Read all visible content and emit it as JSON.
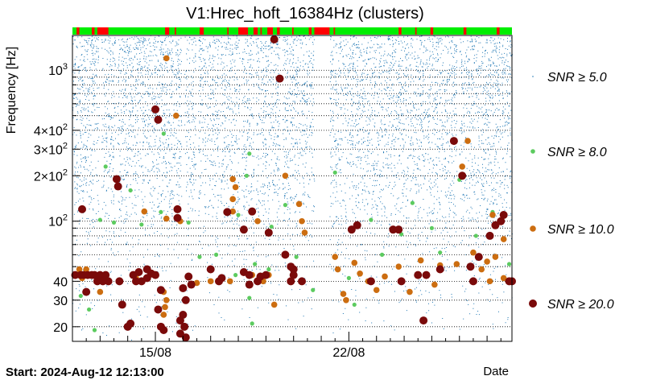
{
  "chart_data": {
    "type": "scatter",
    "title": "V1:Hrec_hoft_16384Hz (clusters)",
    "ylabel": "Frequency [Hz]",
    "xlabel": "Date",
    "start_label": "Start: 2024-Aug-12 12:13:00",
    "yscale": "log",
    "ylim": [
      16,
      1700
    ],
    "xlim": [
      0,
      15.9
    ],
    "x_ticks": [
      {
        "x": 3.0,
        "label": "15/08"
      },
      {
        "x": 10.0,
        "label": "22/08"
      }
    ],
    "y_ticks": [
      {
        "y": 20,
        "label": "20"
      },
      {
        "y": 30,
        "label": "30"
      },
      {
        "y": 40,
        "label": "40"
      },
      {
        "y": 100,
        "label": "10",
        "exp": "2"
      },
      {
        "y": 200,
        "label": "2×10",
        "exp": "2"
      },
      {
        "y": 300,
        "label": "3×10",
        "exp": "2"
      },
      {
        "y": 400,
        "label": "4×10",
        "exp": "2"
      },
      {
        "y": 1000,
        "label": "10",
        "exp": "3"
      }
    ],
    "legend": [
      {
        "label": "SNR ≥ 5.0",
        "color": "#1f77b4"
      },
      {
        "label": "SNR ≥ 8.0",
        "color": "#5ccb5f"
      },
      {
        "label": "SNR ≥ 10.0",
        "color": "#cc6d10"
      },
      {
        "label": "SNR ≥ 20.0",
        "color": "#7a0a0a"
      }
    ],
    "series": [
      {
        "name": "SNR ≥ 8.0",
        "color": "#5ccb5f",
        "points": [
          [
            0.3,
            32
          ],
          [
            0.6,
            26
          ],
          [
            0.8,
            19
          ],
          [
            1.0,
            102
          ],
          [
            1.2,
            230
          ],
          [
            1.5,
            98
          ],
          [
            2.1,
            160
          ],
          [
            2.5,
            95
          ],
          [
            3.3,
            380
          ],
          [
            3.2,
            115
          ],
          [
            4.2,
            98
          ],
          [
            4.6,
            58
          ],
          [
            5.2,
            60
          ],
          [
            5.9,
            44
          ],
          [
            6.0,
            110
          ],
          [
            6.3,
            200
          ],
          [
            6.4,
            280
          ],
          [
            6.4,
            31
          ],
          [
            6.5,
            21
          ],
          [
            6.6,
            52
          ],
          [
            7.1,
            48
          ],
          [
            7.2,
            92
          ],
          [
            7.7,
            128
          ],
          [
            8.1,
            58
          ],
          [
            8.7,
            35
          ],
          [
            9.5,
            210
          ],
          [
            10.0,
            42
          ],
          [
            10.2,
            28
          ],
          [
            10.8,
            102
          ],
          [
            11.2,
            60
          ],
          [
            11.9,
            82
          ],
          [
            12.3,
            132
          ],
          [
            13.0,
            90
          ],
          [
            13.3,
            62
          ],
          [
            14.0,
            188
          ],
          [
            14.6,
            80
          ],
          [
            14.7,
            58
          ],
          [
            15.2,
            115
          ],
          [
            15.8,
            52
          ]
        ]
      },
      {
        "name": "SNR ≥ 10.0",
        "color": "#cc6d10",
        "points": [
          [
            0.25,
            48
          ],
          [
            0.35,
            42
          ],
          [
            0.5,
            48
          ],
          [
            0.6,
            44
          ],
          [
            1.0,
            34
          ],
          [
            2.3,
            42
          ],
          [
            2.6,
            116
          ],
          [
            3.4,
            1200
          ],
          [
            3.4,
            104
          ],
          [
            3.3,
            24
          ],
          [
            3.35,
            27
          ],
          [
            3.4,
            30
          ],
          [
            3.3,
            34
          ],
          [
            3.75,
            500
          ],
          [
            3.9,
            100
          ],
          [
            4.5,
            39
          ],
          [
            5.0,
            40
          ],
          [
            5.8,
            190
          ],
          [
            5.9,
            168
          ],
          [
            5.8,
            140
          ],
          [
            5.8,
            116
          ],
          [
            5.7,
            40
          ],
          [
            6.5,
            44
          ],
          [
            6.7,
            100
          ],
          [
            6.9,
            40
          ],
          [
            7.1,
            44
          ],
          [
            7.5,
            880
          ],
          [
            7.7,
            200
          ],
          [
            7.3,
            28
          ],
          [
            8.2,
            130
          ],
          [
            8.4,
            84
          ],
          [
            8.3,
            100
          ],
          [
            9.5,
            58
          ],
          [
            9.6,
            48
          ],
          [
            9.8,
            33
          ],
          [
            9.9,
            30
          ],
          [
            10.2,
            53
          ],
          [
            10.4,
            45
          ],
          [
            10.7,
            40
          ],
          [
            11.0,
            35
          ],
          [
            11.3,
            43
          ],
          [
            11.8,
            50
          ],
          [
            12.2,
            34
          ],
          [
            12.6,
            55
          ],
          [
            13.1,
            38
          ],
          [
            13.3,
            51
          ],
          [
            13.9,
            52
          ],
          [
            14.1,
            230
          ],
          [
            14.3,
            340
          ],
          [
            14.5,
            62
          ],
          [
            14.8,
            48
          ],
          [
            15.0,
            54
          ],
          [
            15.1,
            40
          ],
          [
            15.2,
            110
          ],
          [
            15.3,
            58
          ],
          [
            15.6,
            76
          ],
          [
            15.6,
            42
          ]
        ]
      },
      {
        "name": "SNR ≥ 20.0",
        "color": "#7a0a0a",
        "points": [
          [
            0.1,
            44
          ],
          [
            0.3,
            44
          ],
          [
            0.4,
            44
          ],
          [
            0.55,
            44
          ],
          [
            0.7,
            44
          ],
          [
            0.8,
            44
          ],
          [
            0.9,
            40
          ],
          [
            0.35,
            120
          ],
          [
            0.5,
            34
          ],
          [
            1.7,
            40
          ],
          [
            1.0,
            44
          ],
          [
            1.1,
            40
          ],
          [
            1.2,
            44
          ],
          [
            1.3,
            40
          ],
          [
            1.6,
            190
          ],
          [
            1.65,
            170
          ],
          [
            1.8,
            28
          ],
          [
            2.0,
            20
          ],
          [
            2.1,
            21
          ],
          [
            2.7,
            48
          ],
          [
            2.2,
            44
          ],
          [
            2.3,
            40
          ],
          [
            2.4,
            46
          ],
          [
            2.5,
            40
          ],
          [
            2.7,
            42
          ],
          [
            2.85,
            45
          ],
          [
            3.0,
            44
          ],
          [
            3.0,
            550
          ],
          [
            3.1,
            26
          ],
          [
            3.2,
            35
          ],
          [
            3.2,
            20
          ],
          [
            3.3,
            19
          ],
          [
            3.8,
            120
          ],
          [
            3.8,
            105
          ],
          [
            3.1,
            470
          ],
          [
            3.9,
            18
          ],
          [
            3.9,
            22
          ],
          [
            4.0,
            24
          ],
          [
            4.1,
            30
          ],
          [
            4.0,
            36
          ],
          [
            4.05,
            20
          ],
          [
            4.1,
            17
          ],
          [
            4.2,
            43
          ],
          [
            4.3,
            38
          ],
          [
            5.3,
            40
          ],
          [
            5.4,
            42
          ],
          [
            5.0,
            48
          ],
          [
            5.6,
            115
          ],
          [
            6.2,
            88
          ],
          [
            6.2,
            46
          ],
          [
            6.4,
            44
          ],
          [
            6.5,
            116
          ],
          [
            6.7,
            40
          ],
          [
            6.8,
            43
          ],
          [
            7.0,
            44
          ],
          [
            6.4,
            38
          ],
          [
            7.1,
            84
          ],
          [
            7.3,
            1600
          ],
          [
            7.5,
            880
          ],
          [
            7.7,
            60
          ],
          [
            7.9,
            50
          ],
          [
            8.0,
            44
          ],
          [
            8.3,
            40
          ],
          [
            7.9,
            40
          ],
          [
            8.0,
            48
          ],
          [
            10.1,
            88
          ],
          [
            10.3,
            94
          ],
          [
            10.8,
            40
          ],
          [
            11.6,
            88
          ],
          [
            11.8,
            88
          ],
          [
            11.9,
            40
          ],
          [
            12.5,
            44
          ],
          [
            12.7,
            22
          ],
          [
            12.8,
            44
          ],
          [
            13.3,
            48
          ],
          [
            13.8,
            340
          ],
          [
            14.1,
            200
          ],
          [
            14.4,
            50
          ],
          [
            14.5,
            40
          ],
          [
            14.7,
            58
          ],
          [
            15.1,
            80
          ],
          [
            15.3,
            94
          ],
          [
            15.5,
            100
          ],
          [
            15.6,
            110
          ],
          [
            15.8,
            40
          ],
          [
            15.9,
            40
          ]
        ]
      }
    ]
  },
  "state_bar": {
    "colors": {
      "ok": "#00ee00",
      "bad": "#ff0000"
    },
    "bad_ranges": [
      [
        0.15,
        0.25
      ],
      [
        0.7,
        0.8
      ],
      [
        0.9,
        1.3
      ],
      [
        3.35,
        3.5
      ],
      [
        3.7,
        3.75
      ],
      [
        4.6,
        4.75
      ],
      [
        5.6,
        5.65
      ],
      [
        6.0,
        6.35
      ],
      [
        6.55,
        6.7
      ],
      [
        6.8,
        6.85
      ],
      [
        7.05,
        7.25
      ],
      [
        7.4,
        7.5
      ],
      [
        7.95,
        8.0
      ],
      [
        8.55,
        8.65
      ],
      [
        8.75,
        9.3
      ],
      [
        9.45,
        9.5
      ],
      [
        11.8,
        11.9
      ],
      [
        12.4,
        12.45
      ],
      [
        12.95,
        13.05
      ],
      [
        14.15,
        14.25
      ],
      [
        15.35,
        15.45
      ]
    ]
  }
}
